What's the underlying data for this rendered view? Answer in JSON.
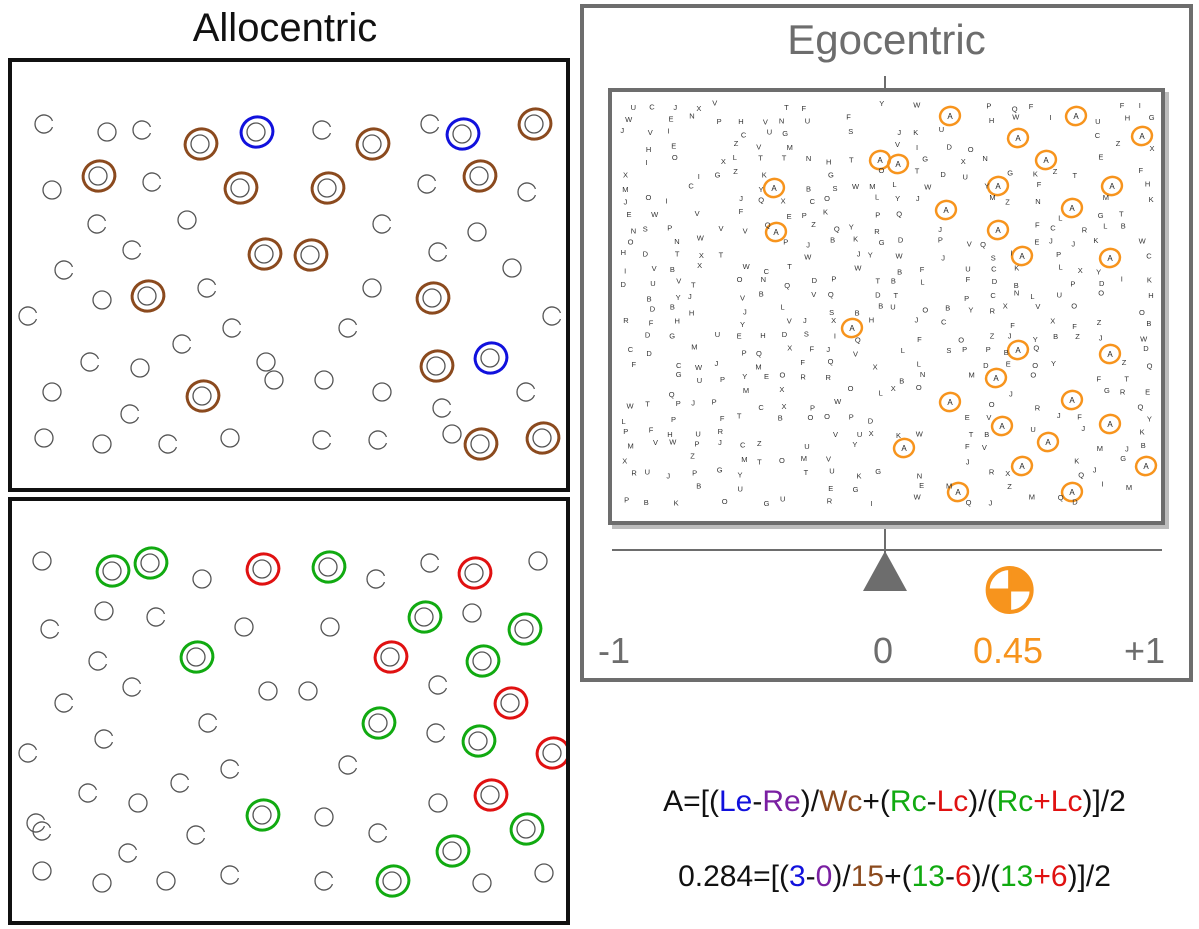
{
  "allocentric": {
    "title": "Allocentric"
  },
  "egocentric": {
    "title": "Egocentric",
    "target_letter": "A",
    "scale": {
      "min_label": "-1",
      "mid_label": "0",
      "max_label": "+1",
      "value": 0.45,
      "value_label": "0.45"
    }
  },
  "colors": {
    "blue": "#1111dd",
    "purple": "#7a1fa2",
    "brown": "#8b4a1e",
    "green": "#11aa11",
    "red": "#e01111",
    "orange": "#f7941d",
    "gray": "#6d6d6d"
  },
  "formula": {
    "line1": {
      "a": "A=[(",
      "le": "Le",
      "dash1": "-",
      "re": "Re",
      "p1": ")/",
      "wc": "Wc",
      "plus1": "+(",
      "rc": "Rc",
      "dash2": "-",
      "lc": "Lc",
      "p2": ")/(",
      "rc2": "Rc",
      "plus2": "+",
      "lc2": "Lc",
      "end": ")]/2"
    },
    "line2": {
      "a": "0.284=[(",
      "le": "3",
      "dash1": "-",
      "re": "0",
      "p1": ")/",
      "wc": "15",
      "plus1": "+(",
      "rc": "13",
      "dash2": "-",
      "lc": "6",
      "p2": ")/(",
      "rc2": "13",
      "plus2": "+",
      "lc2": "6",
      "end": ")]/2"
    }
  }
}
